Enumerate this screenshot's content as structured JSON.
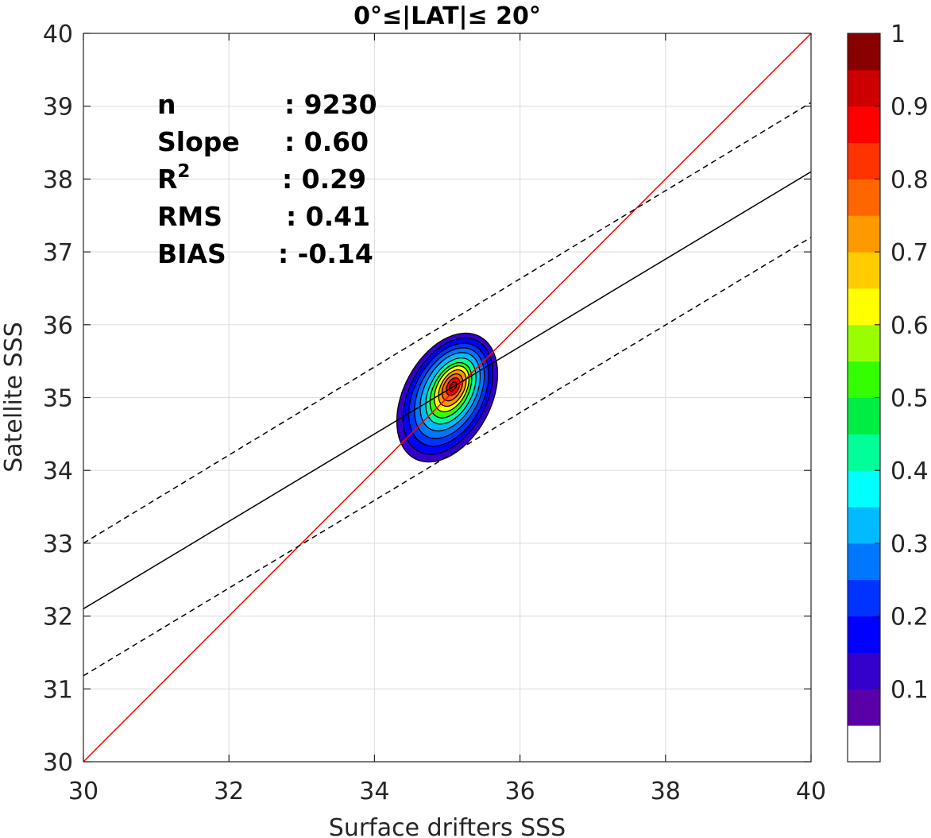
{
  "chart_data": {
    "type": "scatter",
    "subtype": "density-contour",
    "title": "0°≤|LAT|≤ 20°",
    "xlabel": "Surface drifters SSS",
    "ylabel": "Satellite SSS",
    "xlim": [
      30,
      40
    ],
    "ylim": [
      30,
      40
    ],
    "xticks": [
      "30",
      "32",
      "34",
      "36",
      "38",
      "40"
    ],
    "yticks": [
      "30",
      "31",
      "32",
      "33",
      "34",
      "35",
      "36",
      "37",
      "38",
      "39",
      "40"
    ],
    "grid": true,
    "stats": [
      {
        "label": "n",
        "value": ": 9230"
      },
      {
        "label": "Slope",
        "value": ": 0.60"
      },
      {
        "label": "R",
        "sup": "2",
        "value": ": 0.29"
      },
      {
        "label": "RMS",
        "value": ": 0.41"
      },
      {
        "label": "BIAS",
        "value": ": -0.14"
      }
    ],
    "lines": [
      {
        "name": "one-to-one",
        "color": "#ff0000",
        "style": "solid",
        "points": [
          [
            30,
            30
          ],
          [
            40,
            40
          ]
        ]
      },
      {
        "name": "regression",
        "color": "#000000",
        "style": "solid",
        "points": [
          [
            30,
            32.1
          ],
          [
            40,
            38.1
          ]
        ]
      },
      {
        "name": "upper-bound",
        "color": "#000000",
        "style": "dashed",
        "points": [
          [
            30,
            33.0
          ],
          [
            40,
            39.05
          ]
        ]
      },
      {
        "name": "lower-bound",
        "color": "#000000",
        "style": "dashed",
        "points": [
          [
            30,
            31.18
          ],
          [
            40,
            37.2
          ]
        ]
      }
    ],
    "density": {
      "peak": [
        35.08,
        35.15
      ],
      "levels": [
        {
          "value": 0.05,
          "rx": 0.6,
          "ry": 0.95,
          "cx": 35.0,
          "cy": 35.0
        },
        {
          "value": 0.1,
          "rx": 0.53,
          "ry": 0.86,
          "cx": 35.01,
          "cy": 35.02
        },
        {
          "value": 0.15,
          "rx": 0.47,
          "ry": 0.76,
          "cx": 35.02,
          "cy": 35.04
        },
        {
          "value": 0.2,
          "rx": 0.41,
          "ry": 0.67,
          "cx": 35.03,
          "cy": 35.06
        },
        {
          "value": 0.3,
          "rx": 0.35,
          "ry": 0.58,
          "cx": 35.04,
          "cy": 35.08
        },
        {
          "value": 0.4,
          "rx": 0.29,
          "ry": 0.49,
          "cx": 35.05,
          "cy": 35.09
        },
        {
          "value": 0.5,
          "rx": 0.24,
          "ry": 0.41,
          "cx": 35.05,
          "cy": 35.1
        },
        {
          "value": 0.6,
          "rx": 0.2,
          "ry": 0.34,
          "cx": 35.06,
          "cy": 35.12
        },
        {
          "value": 0.7,
          "rx": 0.16,
          "ry": 0.27,
          "cx": 35.07,
          "cy": 35.13
        },
        {
          "value": 0.8,
          "rx": 0.12,
          "ry": 0.2,
          "cx": 35.07,
          "cy": 35.14
        },
        {
          "value": 0.9,
          "rx": 0.08,
          "ry": 0.13,
          "cx": 35.08,
          "cy": 35.15
        },
        {
          "value": 0.95,
          "rx": 0.04,
          "ry": 0.07,
          "cx": 35.08,
          "cy": 35.15
        }
      ]
    },
    "colorbar": {
      "ticks": [
        "0.1",
        "0.2",
        "0.3",
        "0.4",
        "0.5",
        "0.6",
        "0.7",
        "0.8",
        "0.9",
        "1"
      ],
      "colors": [
        "#ffffff",
        "#5a00a8",
        "#3300cc",
        "#0000ff",
        "#0033ff",
        "#0077ff",
        "#00bbff",
        "#00ffff",
        "#00ff99",
        "#00ee44",
        "#33ff00",
        "#99ff00",
        "#ffff00",
        "#ffcc00",
        "#ff9900",
        "#ff6600",
        "#ff3300",
        "#ff0000",
        "#cc0000",
        "#880000"
      ]
    }
  }
}
